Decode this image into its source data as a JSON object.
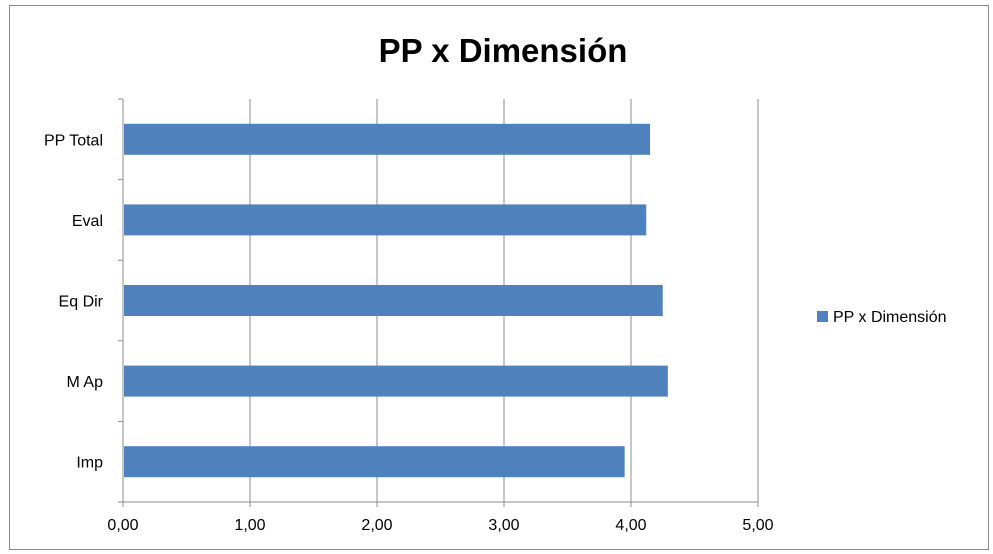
{
  "chart_data": {
    "type": "bar",
    "orientation": "horizontal",
    "title": "PP x Dimensión",
    "xlabel": "",
    "ylabel": "",
    "categories": [
      "PP Total",
      "Eval",
      "Eq Dir",
      "M Ap",
      "Imp"
    ],
    "series": [
      {
        "name": "PP x Dimensión",
        "values": [
          4.15,
          4.12,
          4.25,
          4.29,
          3.95
        ],
        "color": "#4f81bd"
      }
    ],
    "xlim": [
      0,
      5
    ],
    "x_ticks": [
      "0,00",
      "1,00",
      "2,00",
      "3,00",
      "4,00",
      "5,00"
    ],
    "grid": "vertical",
    "legend_position": "right"
  }
}
